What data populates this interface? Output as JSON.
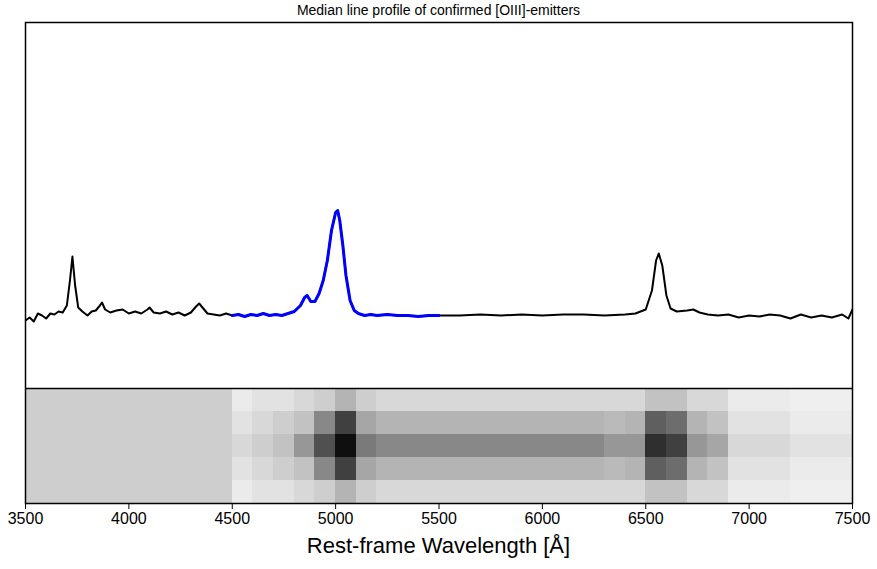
{
  "chart_data": {
    "type": "line",
    "title": "Median line profile of confirmed [OIII]-emitters",
    "xlabel": "Rest-frame Wavelength [Å]",
    "xlim": [
      3500,
      7500
    ],
    "xticks": [
      3500,
      4000,
      4500,
      5000,
      5500,
      6000,
      6500,
      7000,
      7500
    ],
    "ylim": [
      -0.73,
      2.93
    ],
    "tick_labels": "x",
    "grid": false,
    "series": [
      {
        "color": "#000000",
        "x": [
          3500,
          3520,
          3540,
          3560,
          3580,
          3600,
          3620,
          3640,
          3660,
          3680,
          3700,
          3715,
          3727,
          3740,
          3755,
          3775,
          3800,
          3820,
          3840,
          3860,
          3870,
          3885,
          3910,
          3940,
          3970,
          4000,
          4030,
          4060,
          4090,
          4100,
          4120,
          4150,
          4180,
          4210,
          4240,
          4270,
          4300,
          4325,
          4340,
          4360,
          4380,
          4410,
          4440,
          4470,
          4500,
          4530,
          4560,
          4590,
          4620,
          4650,
          4680,
          4710,
          4740,
          4770,
          4800,
          4830,
          4850,
          4862,
          4880,
          4900,
          4920,
          4940,
          4960,
          4980,
          5000,
          5010,
          5020,
          5035,
          5050,
          5070,
          5090,
          5110,
          5140,
          5170,
          5200,
          5250,
          5300,
          5350,
          5400,
          5450,
          5500,
          5600,
          5700,
          5800,
          5900,
          6000,
          6100,
          6200,
          6300,
          6400,
          6450,
          6500,
          6530,
          6550,
          6563,
          6580,
          6600,
          6620,
          6650,
          6700,
          6730,
          6760,
          6800,
          6850,
          6900,
          6950,
          7000,
          7050,
          7100,
          7150,
          7200,
          7250,
          7300,
          7350,
          7400,
          7450,
          7480,
          7500
        ],
        "values": [
          -0.05,
          -0.02,
          -0.06,
          0.02,
          0.0,
          -0.03,
          0.02,
          0.01,
          0.04,
          0.03,
          0.1,
          0.35,
          0.59,
          0.3,
          0.08,
          0.04,
          0.0,
          0.04,
          0.05,
          0.1,
          0.13,
          0.06,
          0.03,
          0.05,
          0.06,
          0.02,
          0.04,
          0.02,
          0.06,
          0.08,
          0.03,
          0.02,
          0.04,
          0.01,
          0.03,
          0.0,
          0.03,
          0.09,
          0.12,
          0.07,
          0.02,
          0.01,
          0.0,
          0.02,
          0.0,
          0.01,
          -0.01,
          0.01,
          0.0,
          0.02,
          0.0,
          0.01,
          0.0,
          0.02,
          0.04,
          0.1,
          0.18,
          0.2,
          0.14,
          0.14,
          0.22,
          0.35,
          0.55,
          0.85,
          1.03,
          1.05,
          0.95,
          0.7,
          0.4,
          0.15,
          0.05,
          0.02,
          0.0,
          0.01,
          0.0,
          0.01,
          0.0,
          0.0,
          -0.01,
          0.0,
          0.0,
          0.0,
          0.01,
          0.0,
          0.01,
          0.0,
          0.01,
          0.01,
          0.0,
          0.01,
          0.02,
          0.06,
          0.25,
          0.55,
          0.62,
          0.5,
          0.2,
          0.07,
          0.04,
          0.05,
          0.06,
          0.03,
          0.01,
          0.0,
          0.01,
          -0.02,
          0.0,
          -0.01,
          0.01,
          0.0,
          -0.03,
          0.01,
          -0.02,
          0.0,
          -0.02,
          0.01,
          -0.03,
          0.06
        ]
      },
      {
        "color": "#0000ff",
        "x": [
          4500,
          4530,
          4560,
          4590,
          4620,
          4650,
          4680,
          4710,
          4740,
          4770,
          4800,
          4830,
          4850,
          4862,
          4880,
          4900,
          4920,
          4940,
          4960,
          4980,
          5000,
          5010,
          5020,
          5035,
          5050,
          5070,
          5090,
          5110,
          5140,
          5170,
          5200,
          5250,
          5300,
          5350,
          5400,
          5450,
          5500
        ],
        "values": [
          0.0,
          0.01,
          -0.01,
          0.01,
          0.0,
          0.02,
          0.0,
          0.01,
          0.0,
          0.02,
          0.04,
          0.1,
          0.18,
          0.2,
          0.14,
          0.14,
          0.22,
          0.35,
          0.55,
          0.85,
          1.03,
          1.05,
          0.95,
          0.7,
          0.4,
          0.15,
          0.05,
          0.02,
          0.0,
          0.01,
          0.0,
          0.01,
          0.0,
          0.0,
          -0.01,
          0.0,
          0.0
        ]
      }
    ],
    "image": {
      "x_edges": [
        3500,
        3600,
        3700,
        3800,
        3900,
        4000,
        4100,
        4200,
        4300,
        4400,
        4500,
        4600,
        4700,
        4800,
        4900,
        5000,
        5100,
        5200,
        5300,
        5400,
        5500,
        5600,
        5700,
        5800,
        5900,
        6000,
        6100,
        6200,
        6300,
        6400,
        6500,
        6600,
        6700,
        6800,
        6900,
        7000,
        7100,
        7200,
        7300,
        7400,
        7500
      ],
      "values": [
        [
          0.3,
          0.3,
          0.3,
          0.3,
          0.3,
          0.3,
          0.3,
          0.3,
          0.3,
          0.3,
          0.15,
          0.2,
          0.2,
          0.25,
          0.3,
          0.4,
          0.3,
          0.25,
          0.25,
          0.25,
          0.25,
          0.25,
          0.25,
          0.25,
          0.25,
          0.25,
          0.25,
          0.25,
          0.25,
          0.25,
          0.35,
          0.35,
          0.25,
          0.25,
          0.15,
          0.15,
          0.15,
          0.12,
          0.12,
          0.12
        ],
        [
          0.3,
          0.3,
          0.3,
          0.3,
          0.3,
          0.3,
          0.3,
          0.3,
          0.3,
          0.3,
          0.2,
          0.25,
          0.3,
          0.35,
          0.55,
          0.8,
          0.45,
          0.4,
          0.4,
          0.4,
          0.4,
          0.4,
          0.4,
          0.4,
          0.4,
          0.4,
          0.4,
          0.4,
          0.38,
          0.4,
          0.7,
          0.65,
          0.4,
          0.35,
          0.2,
          0.2,
          0.2,
          0.15,
          0.15,
          0.15
        ],
        [
          0.3,
          0.3,
          0.3,
          0.3,
          0.3,
          0.3,
          0.3,
          0.3,
          0.3,
          0.3,
          0.25,
          0.3,
          0.35,
          0.5,
          0.75,
          0.95,
          0.6,
          0.55,
          0.55,
          0.55,
          0.55,
          0.55,
          0.55,
          0.55,
          0.55,
          0.55,
          0.55,
          0.55,
          0.5,
          0.5,
          0.85,
          0.8,
          0.5,
          0.45,
          0.25,
          0.25,
          0.25,
          0.2,
          0.2,
          0.2
        ],
        [
          0.3,
          0.3,
          0.3,
          0.3,
          0.3,
          0.3,
          0.3,
          0.3,
          0.3,
          0.3,
          0.2,
          0.25,
          0.3,
          0.35,
          0.55,
          0.8,
          0.45,
          0.4,
          0.4,
          0.4,
          0.4,
          0.4,
          0.4,
          0.4,
          0.4,
          0.4,
          0.4,
          0.4,
          0.38,
          0.4,
          0.7,
          0.65,
          0.4,
          0.35,
          0.2,
          0.2,
          0.2,
          0.15,
          0.15,
          0.15
        ],
        [
          0.3,
          0.3,
          0.3,
          0.3,
          0.3,
          0.3,
          0.3,
          0.3,
          0.3,
          0.3,
          0.15,
          0.2,
          0.2,
          0.25,
          0.3,
          0.4,
          0.3,
          0.25,
          0.25,
          0.25,
          0.25,
          0.25,
          0.25,
          0.25,
          0.25,
          0.25,
          0.25,
          0.25,
          0.25,
          0.25,
          0.35,
          0.35,
          0.25,
          0.25,
          0.15,
          0.15,
          0.15,
          0.12,
          0.12,
          0.12
        ]
      ]
    }
  }
}
